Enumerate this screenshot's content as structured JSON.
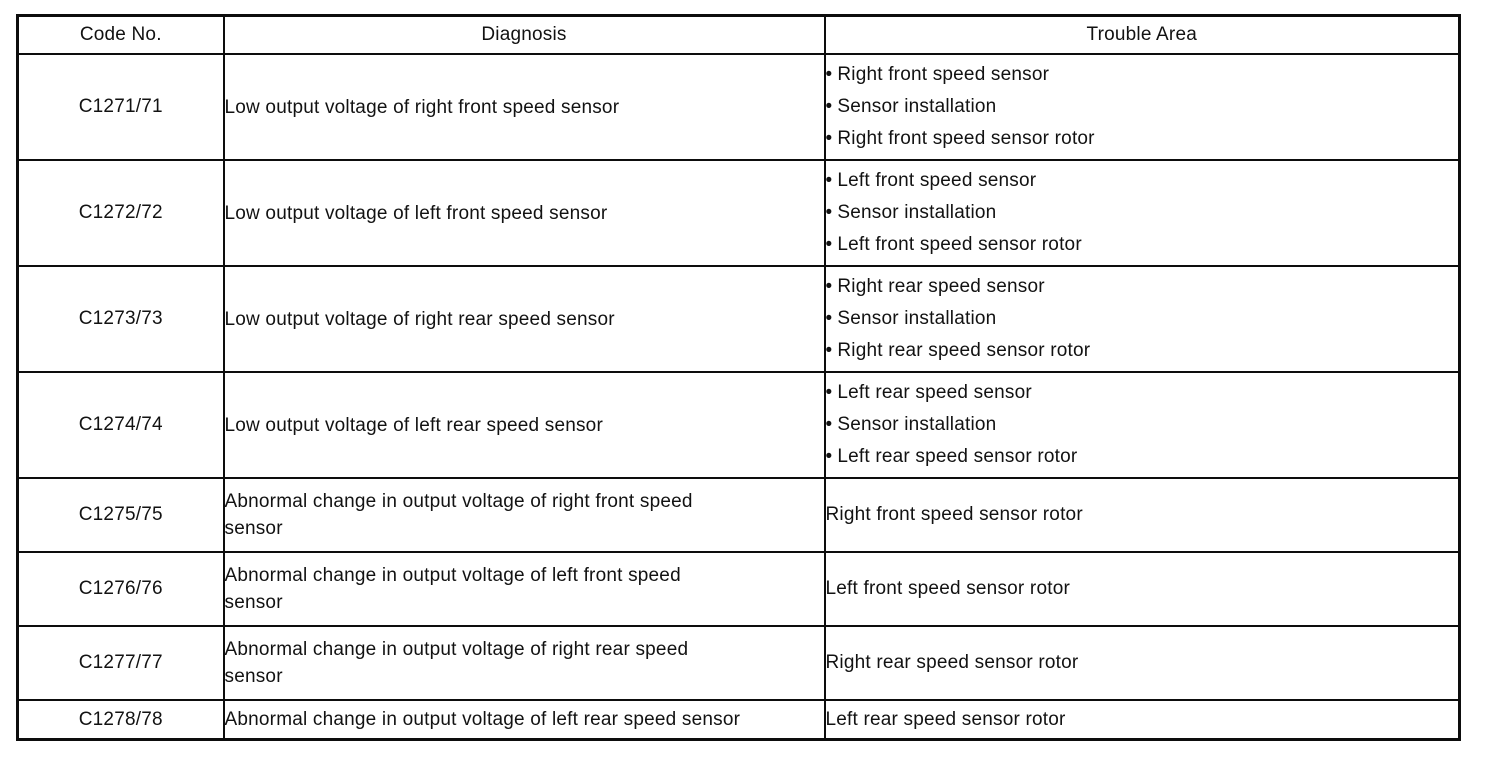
{
  "page": {
    "background": "#ffffff",
    "ink": "#121212",
    "border_color": "#0d0d0d"
  },
  "table": {
    "headers": [
      "Code No.",
      "Diagnosis",
      "Trouble Area"
    ],
    "rows": [
      {
        "code": "C1271/71",
        "diagnosis": "Low output voltage of right front speed sensor",
        "trouble": [
          "Right front speed sensor",
          "Sensor installation",
          "Right front speed sensor rotor"
        ]
      },
      {
        "code": "C1272/72",
        "diagnosis": "Low output voltage of left front speed sensor",
        "trouble": [
          "Left front speed sensor",
          "Sensor installation",
          "Left front speed sensor rotor"
        ]
      },
      {
        "code": "C1273/73",
        "diagnosis": "Low output voltage of right rear speed sensor",
        "trouble": [
          "Right rear speed sensor",
          "Sensor installation",
          "Right rear speed sensor rotor"
        ]
      },
      {
        "code": "C1274/74",
        "diagnosis": "Low output voltage of left rear speed sensor",
        "trouble": [
          "Left rear speed sensor",
          "Sensor installation",
          "Left rear speed sensor rotor"
        ]
      },
      {
        "code": "C1275/75",
        "diagnosis": "Abnormal change in output voltage of right front speed sensor",
        "trouble": [
          "Right front speed sensor rotor"
        ]
      },
      {
        "code": "C1276/76",
        "diagnosis": "Abnormal change in output voltage of left front speed sensor",
        "trouble": [
          "Left front speed sensor rotor"
        ]
      },
      {
        "code": "C1277/77",
        "diagnosis": "Abnormal change in output voltage of right rear speed sensor",
        "trouble": [
          "Right rear speed sensor rotor"
        ]
      },
      {
        "code": "C1278/78",
        "diagnosis": "Abnormal change in output voltage of left rear speed sensor",
        "trouble": [
          "Left rear speed sensor rotor"
        ]
      }
    ]
  }
}
